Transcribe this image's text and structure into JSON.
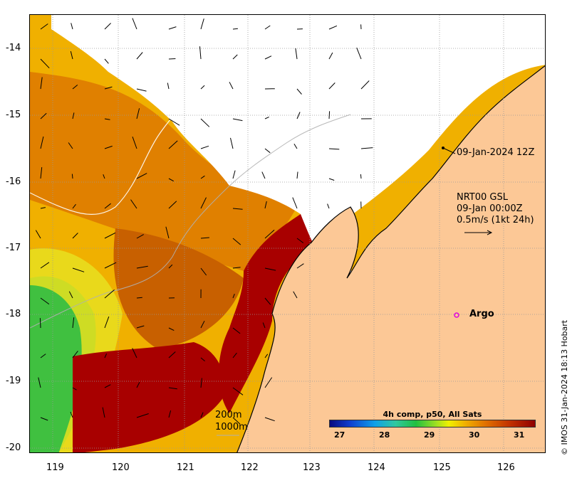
{
  "map": {
    "x_ticks": [
      "119",
      "120",
      "121",
      "122",
      "123",
      "124",
      "125",
      "126"
    ],
    "y_ticks": [
      "-14",
      "-15",
      "-16",
      "-17",
      "-18",
      "-19",
      "-20"
    ],
    "lon_range": [
      118.6,
      126.7
    ],
    "lat_range": [
      -20.1,
      -13.6
    ],
    "colors": {
      "land": "#fcc896",
      "cloud": "#ffffff",
      "sst_hot": "#a80000",
      "sst_warm": "#e08000",
      "sst_mid": "#f0c000",
      "sst_cool": "#40c040",
      "argo_marker": "#e000e0"
    }
  },
  "annotations": {
    "track_label": "09-Jan-2024 12Z",
    "current_product": "NRT00 GSL",
    "current_time": "09-Jan 00:00Z",
    "current_scale": "0.5m/s (1kt 24h)",
    "argo_label": "Argo",
    "contour_200": "200m",
    "contour_1000": "1000m"
  },
  "colorbar": {
    "title": "4h comp, p50, All Sats",
    "ticks": [
      "27",
      "28",
      "29",
      "30",
      "31"
    ]
  },
  "credit": "© IMOS 31-Jan-2024 18:13 Hobart"
}
